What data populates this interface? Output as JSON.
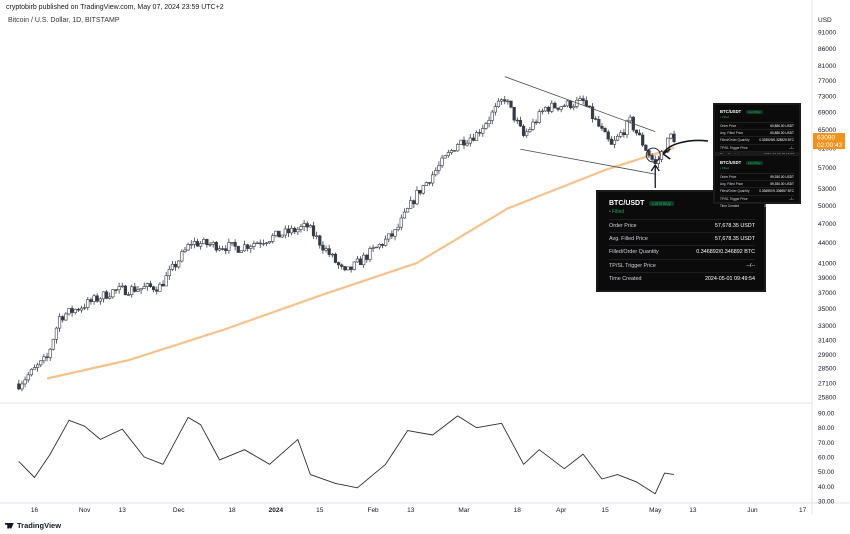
{
  "header": {
    "published": "cryptobirb published on TradingView.com, May 07, 2024 23:59 UTC+2",
    "symbol": "Bitcoin / U.S. Dollar, 1D, BITSTAMP"
  },
  "axis": {
    "currency": "USD",
    "price_ticks": [
      91000,
      86000,
      81000,
      77000,
      73000,
      69000,
      65000,
      61000,
      57000,
      53000,
      50000,
      47000,
      44000,
      41000,
      39000,
      37000,
      35000,
      33000,
      31400,
      29900,
      28500,
      27100,
      25800
    ],
    "price_tick_labels": [
      "91000",
      "86000",
      "81000",
      "77000",
      "73000",
      "69000",
      "65000",
      "61000",
      "57000",
      "53000",
      "50000",
      "47000",
      "44000",
      "41000",
      "39000",
      "37000",
      "35000",
      "33000",
      "31400",
      "29900",
      "28500",
      "27100",
      "25800"
    ],
    "osc_ticks": [
      90,
      80,
      70,
      60,
      50,
      40,
      30
    ],
    "osc_tick_labels": [
      "90.00",
      "80.00",
      "70.00",
      "60.00",
      "50.00",
      "40.00",
      "30.00"
    ],
    "time_labels": [
      "16",
      "Nov",
      "13",
      "Dec",
      "18",
      "2024",
      "15",
      "Feb",
      "13",
      "Mar",
      "18",
      "Apr",
      "15",
      "May",
      "13",
      "Jun",
      "17"
    ],
    "current_price": "63090",
    "countdown": "02:00:43"
  },
  "colors": {
    "up": "#ffffff",
    "down": "#363a45",
    "wick": "#363a45",
    "ma": "#f5c28a",
    "osc": "#2a2e39",
    "price_badge": "#f0931a",
    "trendline": "#4a4a4a",
    "annotation": "#131722"
  },
  "chart_data": [
    {
      "type": "candlestick",
      "title": "Bitcoin / U.S. Dollar, 1D, BITSTAMP",
      "ylabel": "USD",
      "scale": "log",
      "ylim": [
        25000,
        95000
      ],
      "x_range": [
        "2023-10-11",
        "2024-06-19"
      ],
      "ohlc_anchors": [
        {
          "date": "2023-10-11",
          "close": 27000
        },
        {
          "date": "2023-10-20",
          "close": 29500
        },
        {
          "date": "2023-10-24",
          "close": 34000
        },
        {
          "date": "2023-11-10",
          "close": 37200
        },
        {
          "date": "2023-11-25",
          "close": 37800
        },
        {
          "date": "2023-12-05",
          "close": 44000
        },
        {
          "date": "2023-12-20",
          "close": 43200
        },
        {
          "date": "2024-01-11",
          "close": 46500
        },
        {
          "date": "2024-01-23",
          "close": 39500
        },
        {
          "date": "2024-02-08",
          "close": 45500
        },
        {
          "date": "2024-02-15",
          "close": 52000
        },
        {
          "date": "2024-02-28",
          "close": 62000
        },
        {
          "date": "2024-03-05",
          "close": 64000
        },
        {
          "date": "2024-03-14",
          "close": 72500
        },
        {
          "date": "2024-03-20",
          "close": 63500
        },
        {
          "date": "2024-03-27",
          "close": 70000
        },
        {
          "date": "2024-04-08",
          "close": 71500
        },
        {
          "date": "2024-04-17",
          "close": 61300
        },
        {
          "date": "2024-04-23",
          "close": 66800
        },
        {
          "date": "2024-05-01",
          "close": 57500
        },
        {
          "date": "2024-05-06",
          "close": 63600
        },
        {
          "date": "2024-05-07",
          "close": 63090
        }
      ],
      "moving_average": [
        {
          "date": "2023-10-20",
          "value": 27500
        },
        {
          "date": "2023-11-15",
          "value": 29300
        },
        {
          "date": "2023-12-15",
          "value": 32500
        },
        {
          "date": "2024-01-15",
          "value": 36600
        },
        {
          "date": "2024-02-15",
          "value": 41000
        },
        {
          "date": "2024-03-15",
          "value": 49500
        },
        {
          "date": "2024-04-15",
          "value": 56500
        },
        {
          "date": "2024-05-07",
          "value": 61000
        }
      ],
      "trendlines": [
        {
          "from": {
            "date": "2024-03-14",
            "price": 78000
          },
          "to": {
            "date": "2024-05-01",
            "price": 64500
          }
        },
        {
          "from": {
            "date": "2024-03-19",
            "price": 60700
          },
          "to": {
            "date": "2024-05-01",
            "price": 55700
          }
        }
      ]
    },
    {
      "type": "line",
      "title": "",
      "ylim": [
        27,
        93
      ],
      "x_range": [
        "2023-10-11",
        "2024-06-19"
      ],
      "series": [
        {
          "points": [
            {
              "date": "2023-10-11",
              "value": 57
            },
            {
              "date": "2023-10-16",
              "value": 46
            },
            {
              "date": "2023-10-21",
              "value": 62
            },
            {
              "date": "2023-10-27",
              "value": 85
            },
            {
              "date": "2023-11-01",
              "value": 81
            },
            {
              "date": "2023-11-06",
              "value": 72
            },
            {
              "date": "2023-11-13",
              "value": 79
            },
            {
              "date": "2023-11-20",
              "value": 60
            },
            {
              "date": "2023-11-26",
              "value": 55
            },
            {
              "date": "2023-12-04",
              "value": 87
            },
            {
              "date": "2023-12-08",
              "value": 82
            },
            {
              "date": "2023-12-14",
              "value": 58
            },
            {
              "date": "2023-12-22",
              "value": 65
            },
            {
              "date": "2023-12-30",
              "value": 55
            },
            {
              "date": "2024-01-08",
              "value": 72
            },
            {
              "date": "2024-01-12",
              "value": 48
            },
            {
              "date": "2024-01-20",
              "value": 42
            },
            {
              "date": "2024-01-27",
              "value": 39
            },
            {
              "date": "2024-02-05",
              "value": 55
            },
            {
              "date": "2024-02-12",
              "value": 78
            },
            {
              "date": "2024-02-20",
              "value": 75
            },
            {
              "date": "2024-02-28",
              "value": 88
            },
            {
              "date": "2024-03-05",
              "value": 80
            },
            {
              "date": "2024-03-13",
              "value": 83
            },
            {
              "date": "2024-03-20",
              "value": 55
            },
            {
              "date": "2024-03-25",
              "value": 65
            },
            {
              "date": "2024-04-02",
              "value": 52
            },
            {
              "date": "2024-04-08",
              "value": 62
            },
            {
              "date": "2024-04-14",
              "value": 45
            },
            {
              "date": "2024-04-19",
              "value": 48
            },
            {
              "date": "2024-04-25",
              "value": 43
            },
            {
              "date": "2024-05-01",
              "value": 35
            },
            {
              "date": "2024-05-04",
              "value": 49
            },
            {
              "date": "2024-05-07",
              "value": 48
            }
          ]
        }
      ]
    }
  ],
  "orders": {
    "main": {
      "pair": "BTC/USDT",
      "tag": "Limit Buy",
      "status": "• Filled",
      "rows": [
        {
          "label": "Order Price",
          "value": "57,678.35 USDT"
        },
        {
          "label": "Avg. Filled Price",
          "value": "57,678.35 USDT"
        },
        {
          "label": "Filled/Order Quantity",
          "value": "0.346892/0.346892 BTC"
        },
        {
          "label": "TP/SL Trigger Price",
          "value": "--/--"
        },
        {
          "label": "Time Created",
          "value": "2024-05-01 09:49:54"
        }
      ]
    },
    "small_top": {
      "pair": "BTC/USDT",
      "tag": "Limit Buy",
      "status": "• Filled",
      "rows": [
        {
          "label": "Order Price",
          "value": "60,880.00 USDT"
        },
        {
          "label": "Avg. Filled Price",
          "value": "60,880.00 USDT"
        },
        {
          "label": "Filled/Order Quantity",
          "value": "0.328529/0.328529 BTC"
        },
        {
          "label": "TP/SL Trigger Price",
          "value": "--/--"
        },
        {
          "label": "Time Created",
          "value": "2024-05-02 05:12:38"
        }
      ]
    },
    "small_bottom": {
      "pair": "BTC/USDT",
      "tag": "Limit Buy",
      "status": "• Filled",
      "rows": [
        {
          "label": "Order Price",
          "value": "59,350.00 USDT"
        },
        {
          "label": "Avg. Filled Price",
          "value": "59,350.00 USDT"
        },
        {
          "label": "Filled/Order Quantity",
          "value": "0.336957/0.336957 BTC"
        },
        {
          "label": "TP/SL Trigger Price",
          "value": "--/--"
        },
        {
          "label": "Time Created",
          "value": "2024-05-01 13:22:05"
        }
      ]
    }
  },
  "branding": {
    "logo_text": "TradingView"
  }
}
